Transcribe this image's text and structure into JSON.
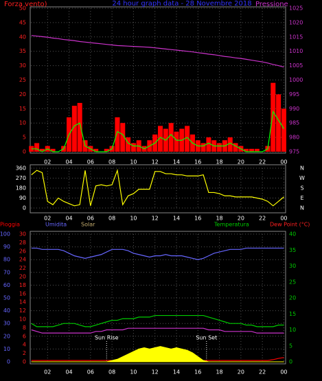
{
  "chart_data": [
    {
      "type": "bar",
      "title": "24 hour graph data - 28 Novembre 2018",
      "y_label": "Forza vento)",
      "y2_label": "Pressione",
      "axis_colors": {
        "y": "#ff2020",
        "y2": "#cc33cc"
      },
      "grid": true,
      "xlim": [
        0.45,
        24.1
      ],
      "xticks": [
        {
          "value": 2,
          "label": "02"
        },
        {
          "value": 4,
          "label": "04"
        },
        {
          "value": 6,
          "label": "06"
        },
        {
          "value": 8,
          "label": "08"
        },
        10,
        12,
        14,
        16,
        18,
        20,
        22,
        {
          "value": 24,
          "label": "00"
        }
      ],
      "ylim": [
        0,
        50
      ],
      "yticks": [
        0,
        5,
        10,
        15,
        20,
        25,
        30,
        35,
        40,
        45,
        50
      ],
      "y2lim": [
        975,
        1025
      ],
      "y2ticks": [
        975,
        980,
        985,
        990,
        995,
        1000,
        1005,
        1010,
        1015,
        1020,
        1025
      ],
      "x": [
        0.5,
        1,
        1.5,
        2,
        2.5,
        3,
        3.5,
        4,
        4.5,
        5,
        5.5,
        6,
        6.5,
        7,
        7.5,
        8,
        8.5,
        9,
        9.5,
        10,
        10.5,
        11,
        11.5,
        12,
        12.5,
        13,
        13.5,
        14,
        14.5,
        15,
        15.5,
        16,
        16.5,
        17,
        17.5,
        18,
        18.5,
        19,
        19.5,
        20,
        20.5,
        21,
        21.5,
        22,
        22.5,
        23,
        23.5,
        24
      ],
      "series": [
        {
          "type": "bar",
          "color": "#ff0000",
          "values": [
            2,
            3,
            1,
            2,
            1,
            0,
            2,
            12,
            16,
            17,
            4,
            2,
            1,
            0,
            1,
            2,
            12,
            10,
            5,
            3,
            4,
            2,
            4,
            6,
            9,
            8,
            10,
            7,
            8,
            9,
            6,
            4,
            3,
            5,
            4,
            3,
            4,
            5,
            3,
            2,
            1,
            1,
            1,
            0,
            2,
            24,
            20,
            15
          ]
        },
        {
          "type": "line",
          "color": "#00ff00",
          "values": [
            1,
            1,
            0,
            1,
            0,
            0,
            1,
            6,
            9,
            10,
            2,
            1,
            0,
            0,
            0,
            1,
            7,
            6,
            3,
            2,
            2,
            1,
            2,
            3,
            5,
            4,
            6,
            4,
            4,
            5,
            3,
            2,
            2,
            3,
            2,
            2,
            2,
            3,
            2,
            1,
            0,
            0,
            0,
            0,
            1,
            14,
            11,
            8
          ]
        },
        {
          "type": "line",
          "axis": "y2",
          "color": "#cc33cc",
          "values": [
            1015.5,
            1015.3,
            1015.1,
            1014.9,
            1014.6,
            1014.4,
            1014.1,
            1013.9,
            1013.7,
            1013.4,
            1013.2,
            1013.0,
            1012.8,
            1012.6,
            1012.4,
            1012.2,
            1012.0,
            1011.9,
            1011.8,
            1011.7,
            1011.6,
            1011.5,
            1011.4,
            1011.2,
            1011.0,
            1010.8,
            1010.6,
            1010.4,
            1010.2,
            1010.0,
            1009.8,
            1009.5,
            1009.3,
            1009.0,
            1008.8,
            1008.5,
            1008.2,
            1008.0,
            1007.7,
            1007.5,
            1007.2,
            1006.9,
            1006.6,
            1006.3,
            1005.9,
            1005.4,
            1005.0,
            1004.5
          ]
        }
      ]
    },
    {
      "type": "line",
      "axis_colors": {
        "y": "#ffffff"
      },
      "grid": true,
      "xlim": [
        0.45,
        24.1
      ],
      "xticks": [
        {
          "value": 2,
          "label": "02"
        },
        {
          "value": 4,
          "label": "04"
        },
        {
          "value": 6,
          "label": "06"
        },
        {
          "value": 8,
          "label": "08"
        },
        10,
        12,
        14,
        16,
        18,
        20,
        22,
        {
          "value": 24,
          "label": "00"
        }
      ],
      "ylim": [
        0,
        360
      ],
      "yticks": [
        0,
        90,
        180,
        270,
        360
      ],
      "direction_labels": [
        "N",
        "W",
        "S",
        "E",
        "N"
      ],
      "x": [
        0.5,
        1,
        1.5,
        2,
        2.5,
        3,
        3.5,
        4,
        4.5,
        5,
        5.5,
        6,
        6.5,
        7,
        7.5,
        8,
        8.5,
        9,
        9.5,
        10,
        10.5,
        11,
        11.5,
        12,
        12.5,
        13,
        13.5,
        14,
        14.5,
        15,
        15.5,
        16,
        16.5,
        17,
        17.5,
        18,
        18.5,
        19,
        19.5,
        20,
        20.5,
        21,
        21.5,
        22,
        22.5,
        23,
        23.5,
        24
      ],
      "series": [
        {
          "type": "line",
          "color": "#ffff00",
          "values": [
            300,
            340,
            320,
            60,
            30,
            90,
            60,
            40,
            20,
            30,
            340,
            20,
            200,
            210,
            200,
            210,
            340,
            30,
            110,
            130,
            170,
            170,
            170,
            330,
            330,
            310,
            310,
            300,
            300,
            290,
            290,
            290,
            300,
            140,
            140,
            130,
            110,
            110,
            100,
            100,
            100,
            100,
            90,
            80,
            60,
            20,
            60,
            100
          ]
        }
      ]
    },
    {
      "type": "line",
      "axis_colors": {
        "y": "#6666ff",
        "y3": "#ff2020",
        "y2": "#00cc00"
      },
      "grid": true,
      "xlim": [
        0.45,
        24.1
      ],
      "xticks": [
        {
          "value": 2,
          "label": "02"
        },
        {
          "value": 4,
          "label": "04"
        },
        {
          "value": 6,
          "label": "06"
        },
        {
          "value": 8,
          "label": "08"
        },
        10,
        12,
        14,
        16,
        18,
        20,
        22,
        {
          "value": 24,
          "label": "00"
        }
      ],
      "ylim": [
        0,
        100
      ],
      "yticks": [
        0,
        10,
        20,
        30,
        40,
        50,
        60,
        70,
        80,
        90,
        100
      ],
      "y3lim": [
        0,
        30
      ],
      "y3ticks": [
        0,
        2,
        4,
        6,
        8,
        10,
        12,
        14,
        16,
        18,
        20,
        22,
        24,
        26,
        28,
        30
      ],
      "y2lim": [
        0,
        40
      ],
      "y2ticks": [
        0,
        5,
        10,
        15,
        20,
        25,
        30,
        35,
        40
      ],
      "annotations": [
        {
          "text": "Sun Rise",
          "x": 7.5
        },
        {
          "text": "Sun Set",
          "x": 16.8
        }
      ],
      "x": [
        0.5,
        1,
        1.5,
        2,
        2.5,
        3,
        3.5,
        4,
        4.5,
        5,
        5.5,
        6,
        6.5,
        7,
        7.5,
        8,
        8.5,
        9,
        9.5,
        10,
        10.5,
        11,
        11.5,
        12,
        12.5,
        13,
        13.5,
        14,
        14.5,
        15,
        15.5,
        16,
        16.5,
        17,
        17.5,
        18,
        18.5,
        19,
        19.5,
        20,
        20.5,
        21,
        21.5,
        22,
        22.5,
        23,
        23.5,
        24
      ],
      "series": [
        {
          "name": "Pioggia",
          "type": "line",
          "axis": "y3",
          "color": "#ff0000",
          "values": [
            0.3,
            0.3,
            0.3,
            0.3,
            0.3,
            0.3,
            0.3,
            0.3,
            0.3,
            0.3,
            0.3,
            0.3,
            0.3,
            0.3,
            0.3,
            0.3,
            0.3,
            0.3,
            0.3,
            0.3,
            0.3,
            0.3,
            0.3,
            0.3,
            0.3,
            0.3,
            0.3,
            0.3,
            0.3,
            0.3,
            0.3,
            0.3,
            0.3,
            0.3,
            0.3,
            0.3,
            0.3,
            0.3,
            0.3,
            0.3,
            0.3,
            0.3,
            0.3,
            0.3,
            0.3,
            0.5,
            0.8,
            1.0
          ]
        },
        {
          "name": "Umidita",
          "type": "line",
          "color": "#6666ff",
          "values": [
            89,
            89,
            88,
            88,
            88,
            88,
            87,
            85,
            83,
            82,
            81,
            82,
            83,
            84,
            86,
            88,
            88,
            88,
            87,
            85,
            84,
            83,
            82,
            83,
            83,
            84,
            83,
            83,
            83,
            82,
            81,
            80,
            81,
            83,
            85,
            86,
            87,
            88,
            88,
            88,
            89,
            89,
            89,
            89,
            89,
            89,
            89,
            89
          ]
        },
        {
          "name": "Solar",
          "type": "area",
          "color": "#ffff00",
          "label_color": "#c8b070",
          "values": [
            0,
            0,
            0,
            0,
            0,
            0,
            0,
            0,
            0,
            0,
            0,
            0,
            0,
            0,
            0,
            1,
            2,
            4,
            6,
            8,
            10,
            11,
            10,
            11,
            12,
            11,
            10,
            11,
            10,
            9,
            7,
            4,
            1,
            0,
            0,
            0,
            0,
            0,
            0,
            0,
            0,
            0,
            0,
            0,
            0,
            0,
            0,
            0
          ]
        },
        {
          "name": "Temperatura",
          "type": "line",
          "axis": "y2",
          "color": "#00cc00",
          "values": [
            12,
            11,
            11,
            11,
            11,
            11.5,
            12,
            12,
            12,
            11.5,
            11,
            11,
            11.5,
            12,
            12.5,
            13,
            13,
            13.5,
            13.5,
            13.5,
            14,
            14,
            14,
            14.5,
            14.5,
            14.5,
            14.5,
            14.5,
            14.5,
            14.5,
            14.5,
            14.5,
            14.5,
            14,
            13.5,
            13,
            12.5,
            12,
            12,
            12,
            11.5,
            11.5,
            11,
            11,
            11,
            11,
            11.5,
            11.5
          ]
        },
        {
          "name": "Dew Point (°C)",
          "type": "line",
          "axis": "y2",
          "color": "#cc33cc",
          "label_color": "#ff2020",
          "values": [
            10,
            9.5,
            9,
            9,
            9,
            9,
            9,
            9,
            9,
            9,
            9,
            9,
            9.5,
            9.5,
            10,
            10,
            10,
            10,
            10.5,
            10.5,
            10.5,
            10.5,
            10.5,
            10.5,
            10.5,
            10.5,
            10.5,
            10.5,
            10.5,
            10.5,
            10.5,
            10.5,
            10.5,
            10,
            10,
            10,
            9.5,
            9.5,
            9.5,
            9.5,
            9.5,
            9.5,
            9,
            9,
            9,
            9,
            9,
            9
          ]
        }
      ]
    }
  ]
}
